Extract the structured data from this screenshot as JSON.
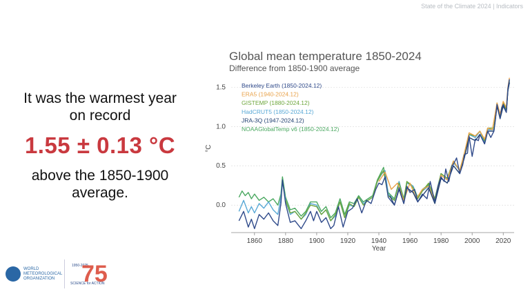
{
  "header": {
    "text": "State of the Climate 2024 | Indicators"
  },
  "left": {
    "line1": "It was the warmest year",
    "line2": "on record",
    "big_value": "1.55 ± 0.13 °C",
    "line3": "above the 1850-1900",
    "line4": "average."
  },
  "footer": {
    "wmo_line1": "WORLD",
    "wmo_line2": "METEOROLOGICAL",
    "wmo_line3": "ORGANIZATION",
    "anniv_years": "1950-2025",
    "anniv_tag": "SCIENCE for ACTION",
    "anniv_number": "75"
  },
  "chart_data": {
    "type": "line",
    "title": "Global mean temperature 1850-2024",
    "subtitle": "Difference from 1850-1900 average",
    "xlabel": "Year",
    "ylabel": "°C",
    "xlim": [
      1845,
      2027
    ],
    "ylim": [
      -0.35,
      1.6
    ],
    "xticks": [
      1860,
      1880,
      1900,
      1920,
      1940,
      1960,
      1980,
      2000,
      2020
    ],
    "yticks": [
      0.0,
      0.5,
      1.0,
      1.5
    ],
    "grid": true,
    "legend_position": "top-left",
    "series": [
      {
        "name": "Berkeley Earth (1850-2024.12)",
        "color": "#2f4a8a",
        "points": [
          [
            1850,
            -0.2
          ],
          [
            1853,
            -0.08
          ],
          [
            1856,
            -0.28
          ],
          [
            1858,
            -0.18
          ],
          [
            1860,
            -0.3
          ],
          [
            1863,
            -0.12
          ],
          [
            1866,
            -0.18
          ],
          [
            1869,
            -0.1
          ],
          [
            1872,
            -0.2
          ],
          [
            1875,
            -0.26
          ],
          [
            1877,
            0.02
          ],
          [
            1878,
            0.32
          ],
          [
            1880,
            0.02
          ],
          [
            1883,
            -0.22
          ],
          [
            1886,
            -0.2
          ],
          [
            1890,
            -0.3
          ],
          [
            1893,
            -0.2
          ],
          [
            1896,
            -0.08
          ],
          [
            1898,
            -0.2
          ],
          [
            1900,
            -0.08
          ],
          [
            1903,
            -0.22
          ],
          [
            1906,
            -0.16
          ],
          [
            1909,
            -0.3
          ],
          [
            1911,
            -0.26
          ],
          [
            1914,
            -0.02
          ],
          [
            1917,
            -0.28
          ],
          [
            1920,
            -0.08
          ],
          [
            1923,
            -0.04
          ],
          [
            1926,
            0.08
          ],
          [
            1929,
            -0.1
          ],
          [
            1932,
            0.06
          ],
          [
            1935,
            0.02
          ],
          [
            1938,
            0.2
          ],
          [
            1940,
            0.28
          ],
          [
            1942,
            0.26
          ],
          [
            1944,
            0.36
          ],
          [
            1946,
            0.1
          ],
          [
            1950,
            0.0
          ],
          [
            1953,
            0.22
          ],
          [
            1956,
            0.02
          ],
          [
            1958,
            0.24
          ],
          [
            1960,
            0.16
          ],
          [
            1963,
            0.2
          ],
          [
            1965,
            0.04
          ],
          [
            1968,
            0.14
          ],
          [
            1971,
            0.08
          ],
          [
            1973,
            0.3
          ],
          [
            1976,
            0.04
          ],
          [
            1978,
            0.24
          ],
          [
            1980,
            0.36
          ],
          [
            1982,
            0.3
          ],
          [
            1983,
            0.46
          ],
          [
            1985,
            0.3
          ],
          [
            1987,
            0.5
          ],
          [
            1988,
            0.52
          ],
          [
            1990,
            0.6
          ],
          [
            1992,
            0.4
          ],
          [
            1994,
            0.52
          ],
          [
            1995,
            0.64
          ],
          [
            1997,
            0.66
          ],
          [
            1998,
            0.88
          ],
          [
            2000,
            0.62
          ],
          [
            2002,
            0.84
          ],
          [
            2004,
            0.82
          ],
          [
            2005,
            0.9
          ],
          [
            2008,
            0.78
          ],
          [
            2010,
            0.94
          ],
          [
            2012,
            0.86
          ],
          [
            2014,
            0.94
          ],
          [
            2015,
            1.1
          ],
          [
            2016,
            1.28
          ],
          [
            2018,
            1.1
          ],
          [
            2019,
            1.24
          ],
          [
            2020,
            1.28
          ],
          [
            2022,
            1.18
          ],
          [
            2023,
            1.48
          ],
          [
            2024,
            1.6
          ]
        ]
      },
      {
        "name": "ERA5 (1940-2024.12)",
        "color": "#e8a24a",
        "points": [
          [
            1940,
            0.3
          ],
          [
            1944,
            0.42
          ],
          [
            1948,
            0.2
          ],
          [
            1952,
            0.28
          ],
          [
            1956,
            0.06
          ],
          [
            1960,
            0.28
          ],
          [
            1964,
            0.08
          ],
          [
            1968,
            0.2
          ],
          [
            1972,
            0.24
          ],
          [
            1976,
            0.04
          ],
          [
            1980,
            0.38
          ],
          [
            1984,
            0.32
          ],
          [
            1988,
            0.56
          ],
          [
            1992,
            0.44
          ],
          [
            1995,
            0.66
          ],
          [
            1998,
            0.92
          ],
          [
            2002,
            0.88
          ],
          [
            2005,
            0.94
          ],
          [
            2008,
            0.84
          ],
          [
            2010,
            0.98
          ],
          [
            2013,
            0.96
          ],
          [
            2016,
            1.3
          ],
          [
            2018,
            1.16
          ],
          [
            2020,
            1.32
          ],
          [
            2022,
            1.24
          ],
          [
            2023,
            1.5
          ],
          [
            2024,
            1.62
          ]
        ]
      },
      {
        "name": "GISTEMP (1880-2024.12)",
        "color": "#6da63c",
        "points": [
          [
            1880,
            0.06
          ],
          [
            1883,
            -0.1
          ],
          [
            1886,
            -0.08
          ],
          [
            1890,
            -0.18
          ],
          [
            1893,
            -0.1
          ],
          [
            1896,
            0.0
          ],
          [
            1900,
            -0.02
          ],
          [
            1903,
            -0.12
          ],
          [
            1906,
            -0.06
          ],
          [
            1909,
            -0.2
          ],
          [
            1912,
            -0.12
          ],
          [
            1915,
            0.04
          ],
          [
            1918,
            -0.16
          ],
          [
            1921,
            0.02
          ],
          [
            1924,
            -0.02
          ],
          [
            1927,
            0.1
          ],
          [
            1930,
            0.0
          ],
          [
            1933,
            0.06
          ],
          [
            1936,
            0.1
          ],
          [
            1939,
            0.3
          ],
          [
            1941,
            0.38
          ],
          [
            1943,
            0.44
          ],
          [
            1946,
            0.12
          ],
          [
            1950,
            0.06
          ],
          [
            1953,
            0.28
          ],
          [
            1956,
            0.06
          ],
          [
            1958,
            0.3
          ],
          [
            1962,
            0.22
          ],
          [
            1965,
            0.08
          ],
          [
            1968,
            0.18
          ],
          [
            1972,
            0.28
          ],
          [
            1976,
            0.08
          ],
          [
            1980,
            0.4
          ],
          [
            1984,
            0.34
          ],
          [
            1988,
            0.56
          ],
          [
            1992,
            0.44
          ],
          [
            1995,
            0.66
          ],
          [
            1998,
            0.9
          ],
          [
            2002,
            0.88
          ],
          [
            2005,
            0.94
          ],
          [
            2008,
            0.82
          ],
          [
            2010,
            0.98
          ],
          [
            2014,
            0.98
          ],
          [
            2016,
            1.3
          ],
          [
            2018,
            1.14
          ],
          [
            2020,
            1.3
          ],
          [
            2022,
            1.22
          ],
          [
            2023,
            1.48
          ],
          [
            2024,
            1.58
          ]
        ]
      },
      {
        "name": "HadCRUT5 (1850-2024.12)",
        "color": "#58a8d6",
        "points": [
          [
            1850,
            -0.08
          ],
          [
            1853,
            0.06
          ],
          [
            1856,
            -0.1
          ],
          [
            1858,
            -0.02
          ],
          [
            1860,
            -0.1
          ],
          [
            1863,
            0.02
          ],
          [
            1866,
            -0.04
          ],
          [
            1869,
            0.04
          ],
          [
            1872,
            -0.06
          ],
          [
            1875,
            -0.12
          ],
          [
            1877,
            0.1
          ],
          [
            1878,
            0.3
          ],
          [
            1880,
            0.06
          ],
          [
            1883,
            -0.12
          ],
          [
            1886,
            -0.08
          ],
          [
            1890,
            -0.18
          ],
          [
            1893,
            -0.12
          ],
          [
            1896,
            0.02
          ],
          [
            1900,
            0.0
          ],
          [
            1903,
            -0.12
          ],
          [
            1906,
            -0.06
          ],
          [
            1909,
            -0.2
          ],
          [
            1912,
            -0.14
          ],
          [
            1915,
            0.04
          ],
          [
            1918,
            -0.16
          ],
          [
            1921,
            0.0
          ],
          [
            1924,
            -0.02
          ],
          [
            1927,
            0.1
          ],
          [
            1930,
            0.02
          ],
          [
            1933,
            0.06
          ],
          [
            1936,
            0.1
          ],
          [
            1939,
            0.3
          ],
          [
            1942,
            0.4
          ],
          [
            1944,
            0.44
          ],
          [
            1946,
            0.14
          ],
          [
            1950,
            0.06
          ],
          [
            1953,
            0.3
          ],
          [
            1956,
            0.06
          ],
          [
            1958,
            0.28
          ],
          [
            1962,
            0.24
          ],
          [
            1965,
            0.08
          ],
          [
            1968,
            0.18
          ],
          [
            1972,
            0.24
          ],
          [
            1976,
            0.06
          ],
          [
            1980,
            0.4
          ],
          [
            1984,
            0.34
          ],
          [
            1988,
            0.54
          ],
          [
            1992,
            0.44
          ],
          [
            1995,
            0.64
          ],
          [
            1998,
            0.9
          ],
          [
            2002,
            0.86
          ],
          [
            2005,
            0.94
          ],
          [
            2008,
            0.8
          ],
          [
            2010,
            0.96
          ],
          [
            2014,
            0.96
          ],
          [
            2016,
            1.28
          ],
          [
            2018,
            1.12
          ],
          [
            2020,
            1.3
          ],
          [
            2022,
            1.2
          ],
          [
            2023,
            1.46
          ],
          [
            2024,
            1.56
          ]
        ]
      },
      {
        "name": "JRA-3Q (1947-2024.12)",
        "color": "#1f3f70",
        "points": [
          [
            1947,
            0.12
          ],
          [
            1950,
            0.0
          ],
          [
            1953,
            0.2
          ],
          [
            1956,
            0.02
          ],
          [
            1958,
            0.22
          ],
          [
            1962,
            0.16
          ],
          [
            1965,
            0.04
          ],
          [
            1968,
            0.12
          ],
          [
            1972,
            0.22
          ],
          [
            1976,
            0.02
          ],
          [
            1980,
            0.34
          ],
          [
            1984,
            0.28
          ],
          [
            1988,
            0.5
          ],
          [
            1992,
            0.4
          ],
          [
            1995,
            0.6
          ],
          [
            1998,
            0.86
          ],
          [
            2002,
            0.82
          ],
          [
            2005,
            0.9
          ],
          [
            2008,
            0.78
          ],
          [
            2010,
            0.94
          ],
          [
            2014,
            0.94
          ],
          [
            2016,
            1.26
          ],
          [
            2018,
            1.1
          ],
          [
            2020,
            1.26
          ],
          [
            2022,
            1.18
          ],
          [
            2023,
            1.46
          ],
          [
            2024,
            1.56
          ]
        ]
      },
      {
        "name": "NOAAGlobalTemp v6 (1850-2024.12)",
        "color": "#4aa860",
        "points": [
          [
            1850,
            0.1
          ],
          [
            1852,
            0.18
          ],
          [
            1854,
            0.12
          ],
          [
            1856,
            0.16
          ],
          [
            1858,
            0.08
          ],
          [
            1860,
            0.14
          ],
          [
            1863,
            0.06
          ],
          [
            1866,
            0.1
          ],
          [
            1869,
            0.04
          ],
          [
            1872,
            0.08
          ],
          [
            1875,
            0.0
          ],
          [
            1877,
            0.14
          ],
          [
            1878,
            0.36
          ],
          [
            1880,
            0.1
          ],
          [
            1883,
            -0.06
          ],
          [
            1886,
            -0.04
          ],
          [
            1890,
            -0.14
          ],
          [
            1893,
            -0.08
          ],
          [
            1896,
            0.04
          ],
          [
            1900,
            0.04
          ],
          [
            1903,
            -0.08
          ],
          [
            1906,
            -0.02
          ],
          [
            1909,
            -0.16
          ],
          [
            1912,
            -0.1
          ],
          [
            1915,
            0.08
          ],
          [
            1918,
            -0.12
          ],
          [
            1921,
            0.04
          ],
          [
            1924,
            0.02
          ],
          [
            1927,
            0.12
          ],
          [
            1930,
            0.04
          ],
          [
            1933,
            0.08
          ],
          [
            1936,
            0.12
          ],
          [
            1939,
            0.32
          ],
          [
            1941,
            0.4
          ],
          [
            1943,
            0.48
          ],
          [
            1946,
            0.16
          ],
          [
            1950,
            0.08
          ],
          [
            1953,
            0.3
          ],
          [
            1956,
            0.08
          ],
          [
            1958,
            0.3
          ],
          [
            1962,
            0.24
          ],
          [
            1965,
            0.1
          ],
          [
            1968,
            0.2
          ],
          [
            1972,
            0.26
          ],
          [
            1976,
            0.08
          ],
          [
            1980,
            0.4
          ],
          [
            1984,
            0.34
          ],
          [
            1988,
            0.56
          ],
          [
            1992,
            0.44
          ],
          [
            1995,
            0.64
          ],
          [
            1998,
            0.9
          ],
          [
            2002,
            0.86
          ],
          [
            2005,
            0.94
          ],
          [
            2008,
            0.82
          ],
          [
            2010,
            0.96
          ],
          [
            2014,
            0.96
          ],
          [
            2016,
            1.28
          ],
          [
            2018,
            1.12
          ],
          [
            2020,
            1.28
          ],
          [
            2022,
            1.2
          ],
          [
            2023,
            1.46
          ],
          [
            2024,
            1.56
          ]
        ]
      }
    ]
  }
}
